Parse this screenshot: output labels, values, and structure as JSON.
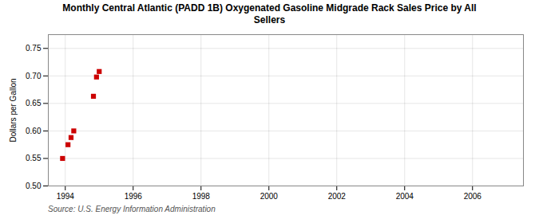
{
  "chart_data": {
    "type": "scatter",
    "title": "Monthly Central Atlantic (PADD 1B) Oxygenated Gasoline Midgrade Rack Sales Price by All\nSellers",
    "ylabel": "Dollars per Gallon",
    "caption": "Source: U.S. Energy Information Administration",
    "x": [
      1993.92,
      1994.08,
      1994.17,
      1994.25,
      1994.83,
      1994.92,
      1995.0
    ],
    "values": [
      0.55,
      0.575,
      0.588,
      0.6,
      0.663,
      0.698,
      0.708
    ],
    "color": "#cc0000",
    "marker": "square",
    "xlim": [
      1993.5,
      2007.5
    ],
    "ylim": [
      0.5,
      0.775
    ],
    "xticks": [
      1994,
      1996,
      1998,
      2000,
      2002,
      2004,
      2006
    ],
    "yticks": [
      {
        "value": 0.5,
        "label": "0.50"
      },
      0.55,
      {
        "value": 0.6,
        "label": "0.60"
      },
      0.65,
      {
        "value": 0.7,
        "label": "0.70"
      },
      0.75
    ],
    "grid": true
  }
}
